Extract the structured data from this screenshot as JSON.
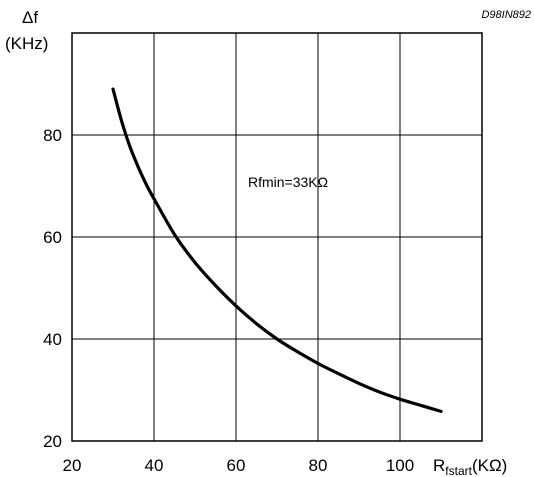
{
  "chart_data": {
    "type": "line",
    "ylabel_symbol": "Δf",
    "ylabel_unit": "(KHz)",
    "xlabel_main": "R",
    "xlabel_sub": "fstart",
    "xlabel_unit": "(KΩ)",
    "figure_code": "D98IN892",
    "annotation": "Rfmin=33KΩ",
    "xlim": [
      20,
      120
    ],
    "ylim": [
      20,
      100
    ],
    "x_ticks": [
      20,
      40,
      60,
      80,
      100
    ],
    "y_ticks": [
      20,
      40,
      60,
      80
    ],
    "grid": true,
    "series": [
      {
        "x": [
          30,
          32,
          34,
          36,
          38,
          40,
          45,
          50,
          55,
          60,
          65,
          70,
          75,
          80,
          85,
          90,
          95,
          100,
          105,
          110
        ],
        "y": [
          89,
          83,
          78,
          74,
          70.5,
          67.5,
          60.5,
          55,
          50.5,
          46.5,
          43,
          40,
          37.5,
          35.2,
          33.2,
          31.3,
          29.6,
          28.2,
          27,
          25.8
        ]
      }
    ]
  }
}
